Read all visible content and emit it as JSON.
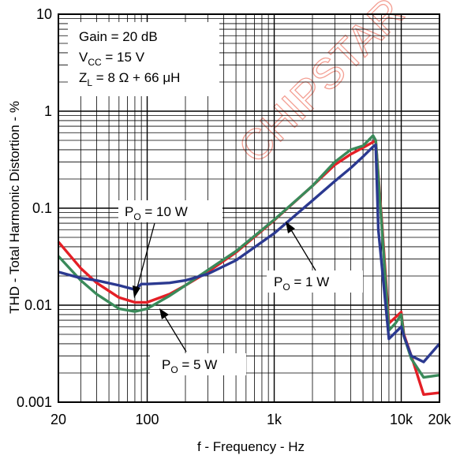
{
  "chart_data": {
    "type": "line",
    "title": "",
    "xlabel": "f - Frequency - Hz",
    "ylabel": "THD - Total Harmonic Distortion - %",
    "x_scale": "log",
    "y_scale": "log",
    "xlim": [
      20,
      20000
    ],
    "ylim": [
      0.001,
      10
    ],
    "grid": true,
    "x_ticks": [
      {
        "value": 20,
        "label": "20"
      },
      {
        "value": 100,
        "label": "100"
      },
      {
        "value": 1000,
        "label": "1k"
      },
      {
        "value": 10000,
        "label": "10k"
      },
      {
        "value": 20000,
        "label": "20k"
      }
    ],
    "y_ticks": [
      {
        "value": 10,
        "label": "10"
      },
      {
        "value": 1,
        "label": "1"
      },
      {
        "value": 0.1,
        "label": "0.1"
      },
      {
        "value": 0.01,
        "label": "0.01"
      },
      {
        "value": 0.001,
        "label": "0.001"
      }
    ],
    "conditions": {
      "gain": "Gain = 20 dB",
      "vcc_main": "V",
      "vcc_sub": "CC",
      "vcc_rest": " = 15 V",
      "zl_main": "Z",
      "zl_sub": "L",
      "zl_rest": " = 8 Ω + 66 μH"
    },
    "annotations": [
      {
        "main": "P",
        "sub": "O",
        "rest": " = 10 W"
      },
      {
        "main": "P",
        "sub": "O",
        "rest": " = 1 W"
      },
      {
        "main": "P",
        "sub": "O",
        "rest": " = 5 W"
      }
    ],
    "series": [
      {
        "color": "#e41f26",
        "x": [
          20,
          30,
          40,
          60,
          80,
          100,
          150,
          200,
          300,
          500,
          1000,
          2000,
          3000,
          4000,
          5000,
          6000,
          6300,
          7000,
          8000,
          10000,
          10500,
          12000,
          15000,
          20000
        ],
        "y": [
          0.045,
          0.024,
          0.017,
          0.012,
          0.0107,
          0.0107,
          0.013,
          0.016,
          0.022,
          0.035,
          0.075,
          0.17,
          0.28,
          0.36,
          0.42,
          0.48,
          0.5,
          0.08,
          0.0065,
          0.0085,
          0.005,
          0.003,
          0.0012,
          0.00125
        ]
      },
      {
        "color": "#3a8a5a",
        "x": [
          20,
          30,
          40,
          60,
          80,
          100,
          150,
          200,
          300,
          500,
          1000,
          2000,
          3000,
          4000,
          5000,
          6000,
          6300,
          7000,
          8000,
          9000,
          10000,
          10500,
          12000,
          15000,
          20000
        ],
        "y": [
          0.032,
          0.018,
          0.013,
          0.0092,
          0.0086,
          0.0092,
          0.0125,
          0.016,
          0.023,
          0.036,
          0.076,
          0.17,
          0.3,
          0.4,
          0.44,
          0.56,
          0.5,
          0.07,
          0.0055,
          0.0065,
          0.008,
          0.0048,
          0.0028,
          0.0018,
          0.0019
        ]
      },
      {
        "color": "#2b3990",
        "x": [
          20,
          30,
          40,
          60,
          80,
          90,
          100,
          150,
          200,
          300,
          500,
          1000,
          2000,
          3000,
          4000,
          5000,
          6000,
          6300,
          6600,
          8000,
          10000,
          10500,
          12000,
          15000,
          20000
        ],
        "y": [
          0.022,
          0.019,
          0.018,
          0.016,
          0.0145,
          0.0165,
          0.0165,
          0.017,
          0.018,
          0.021,
          0.029,
          0.055,
          0.12,
          0.19,
          0.26,
          0.34,
          0.43,
          0.45,
          0.06,
          0.0045,
          0.006,
          0.0048,
          0.003,
          0.0026,
          0.004
        ]
      }
    ]
  },
  "watermark": "CHIPSTAR"
}
